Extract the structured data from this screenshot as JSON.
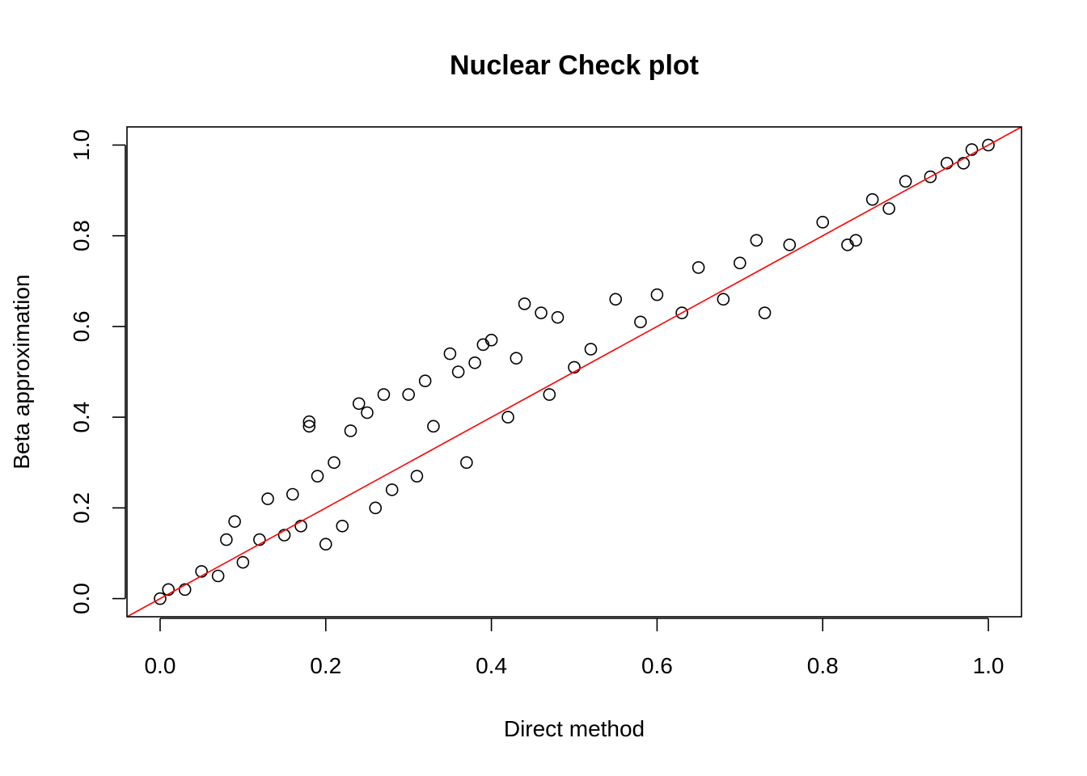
{
  "chart_data": {
    "type": "scatter",
    "title": "Nuclear Check plot",
    "xlabel": "Direct method",
    "ylabel": "Beta approximation",
    "xlim": [
      -0.04,
      1.04
    ],
    "ylim": [
      -0.04,
      1.04
    ],
    "xticks": [
      0.0,
      0.2,
      0.4,
      0.6,
      0.8,
      1.0
    ],
    "xtick_labels": [
      "0.0",
      "0.2",
      "0.4",
      "0.6",
      "0.8",
      "1.0"
    ],
    "yticks": [
      0.0,
      0.2,
      0.4,
      0.6,
      0.8,
      1.0
    ],
    "ytick_labels": [
      "0.0",
      "0.2",
      "0.4",
      "0.6",
      "0.8",
      "1.0"
    ],
    "grid": false,
    "legend": "none",
    "marker": "open-circle",
    "point_color": "#000000",
    "reference_line": {
      "type": "identity",
      "slope": 1,
      "intercept": 0,
      "color": "#ff0000"
    },
    "series": [
      {
        "points": [
          [
            0.0,
            0.0
          ],
          [
            0.01,
            0.02
          ],
          [
            0.03,
            0.02
          ],
          [
            0.05,
            0.06
          ],
          [
            0.07,
            0.05
          ],
          [
            0.08,
            0.13
          ],
          [
            0.09,
            0.17
          ],
          [
            0.1,
            0.08
          ],
          [
            0.12,
            0.13
          ],
          [
            0.13,
            0.22
          ],
          [
            0.15,
            0.14
          ],
          [
            0.16,
            0.23
          ],
          [
            0.17,
            0.16
          ],
          [
            0.18,
            0.39
          ],
          [
            0.18,
            0.38
          ],
          [
            0.19,
            0.27
          ],
          [
            0.2,
            0.12
          ],
          [
            0.21,
            0.3
          ],
          [
            0.22,
            0.16
          ],
          [
            0.23,
            0.37
          ],
          [
            0.24,
            0.43
          ],
          [
            0.25,
            0.41
          ],
          [
            0.26,
            0.2
          ],
          [
            0.27,
            0.45
          ],
          [
            0.28,
            0.24
          ],
          [
            0.3,
            0.45
          ],
          [
            0.31,
            0.27
          ],
          [
            0.32,
            0.48
          ],
          [
            0.33,
            0.38
          ],
          [
            0.35,
            0.54
          ],
          [
            0.36,
            0.5
          ],
          [
            0.37,
            0.3
          ],
          [
            0.38,
            0.52
          ],
          [
            0.39,
            0.56
          ],
          [
            0.4,
            0.57
          ],
          [
            0.42,
            0.4
          ],
          [
            0.43,
            0.53
          ],
          [
            0.44,
            0.65
          ],
          [
            0.46,
            0.63
          ],
          [
            0.47,
            0.45
          ],
          [
            0.48,
            0.62
          ],
          [
            0.5,
            0.51
          ],
          [
            0.52,
            0.55
          ],
          [
            0.55,
            0.66
          ],
          [
            0.58,
            0.61
          ],
          [
            0.6,
            0.67
          ],
          [
            0.63,
            0.63
          ],
          [
            0.65,
            0.73
          ],
          [
            0.68,
            0.66
          ],
          [
            0.7,
            0.74
          ],
          [
            0.72,
            0.79
          ],
          [
            0.73,
            0.63
          ],
          [
            0.76,
            0.78
          ],
          [
            0.8,
            0.83
          ],
          [
            0.83,
            0.78
          ],
          [
            0.84,
            0.79
          ],
          [
            0.86,
            0.88
          ],
          [
            0.88,
            0.86
          ],
          [
            0.9,
            0.92
          ],
          [
            0.93,
            0.93
          ],
          [
            0.95,
            0.96
          ],
          [
            0.97,
            0.96
          ],
          [
            0.98,
            0.99
          ],
          [
            1.0,
            1.0
          ]
        ]
      }
    ]
  }
}
